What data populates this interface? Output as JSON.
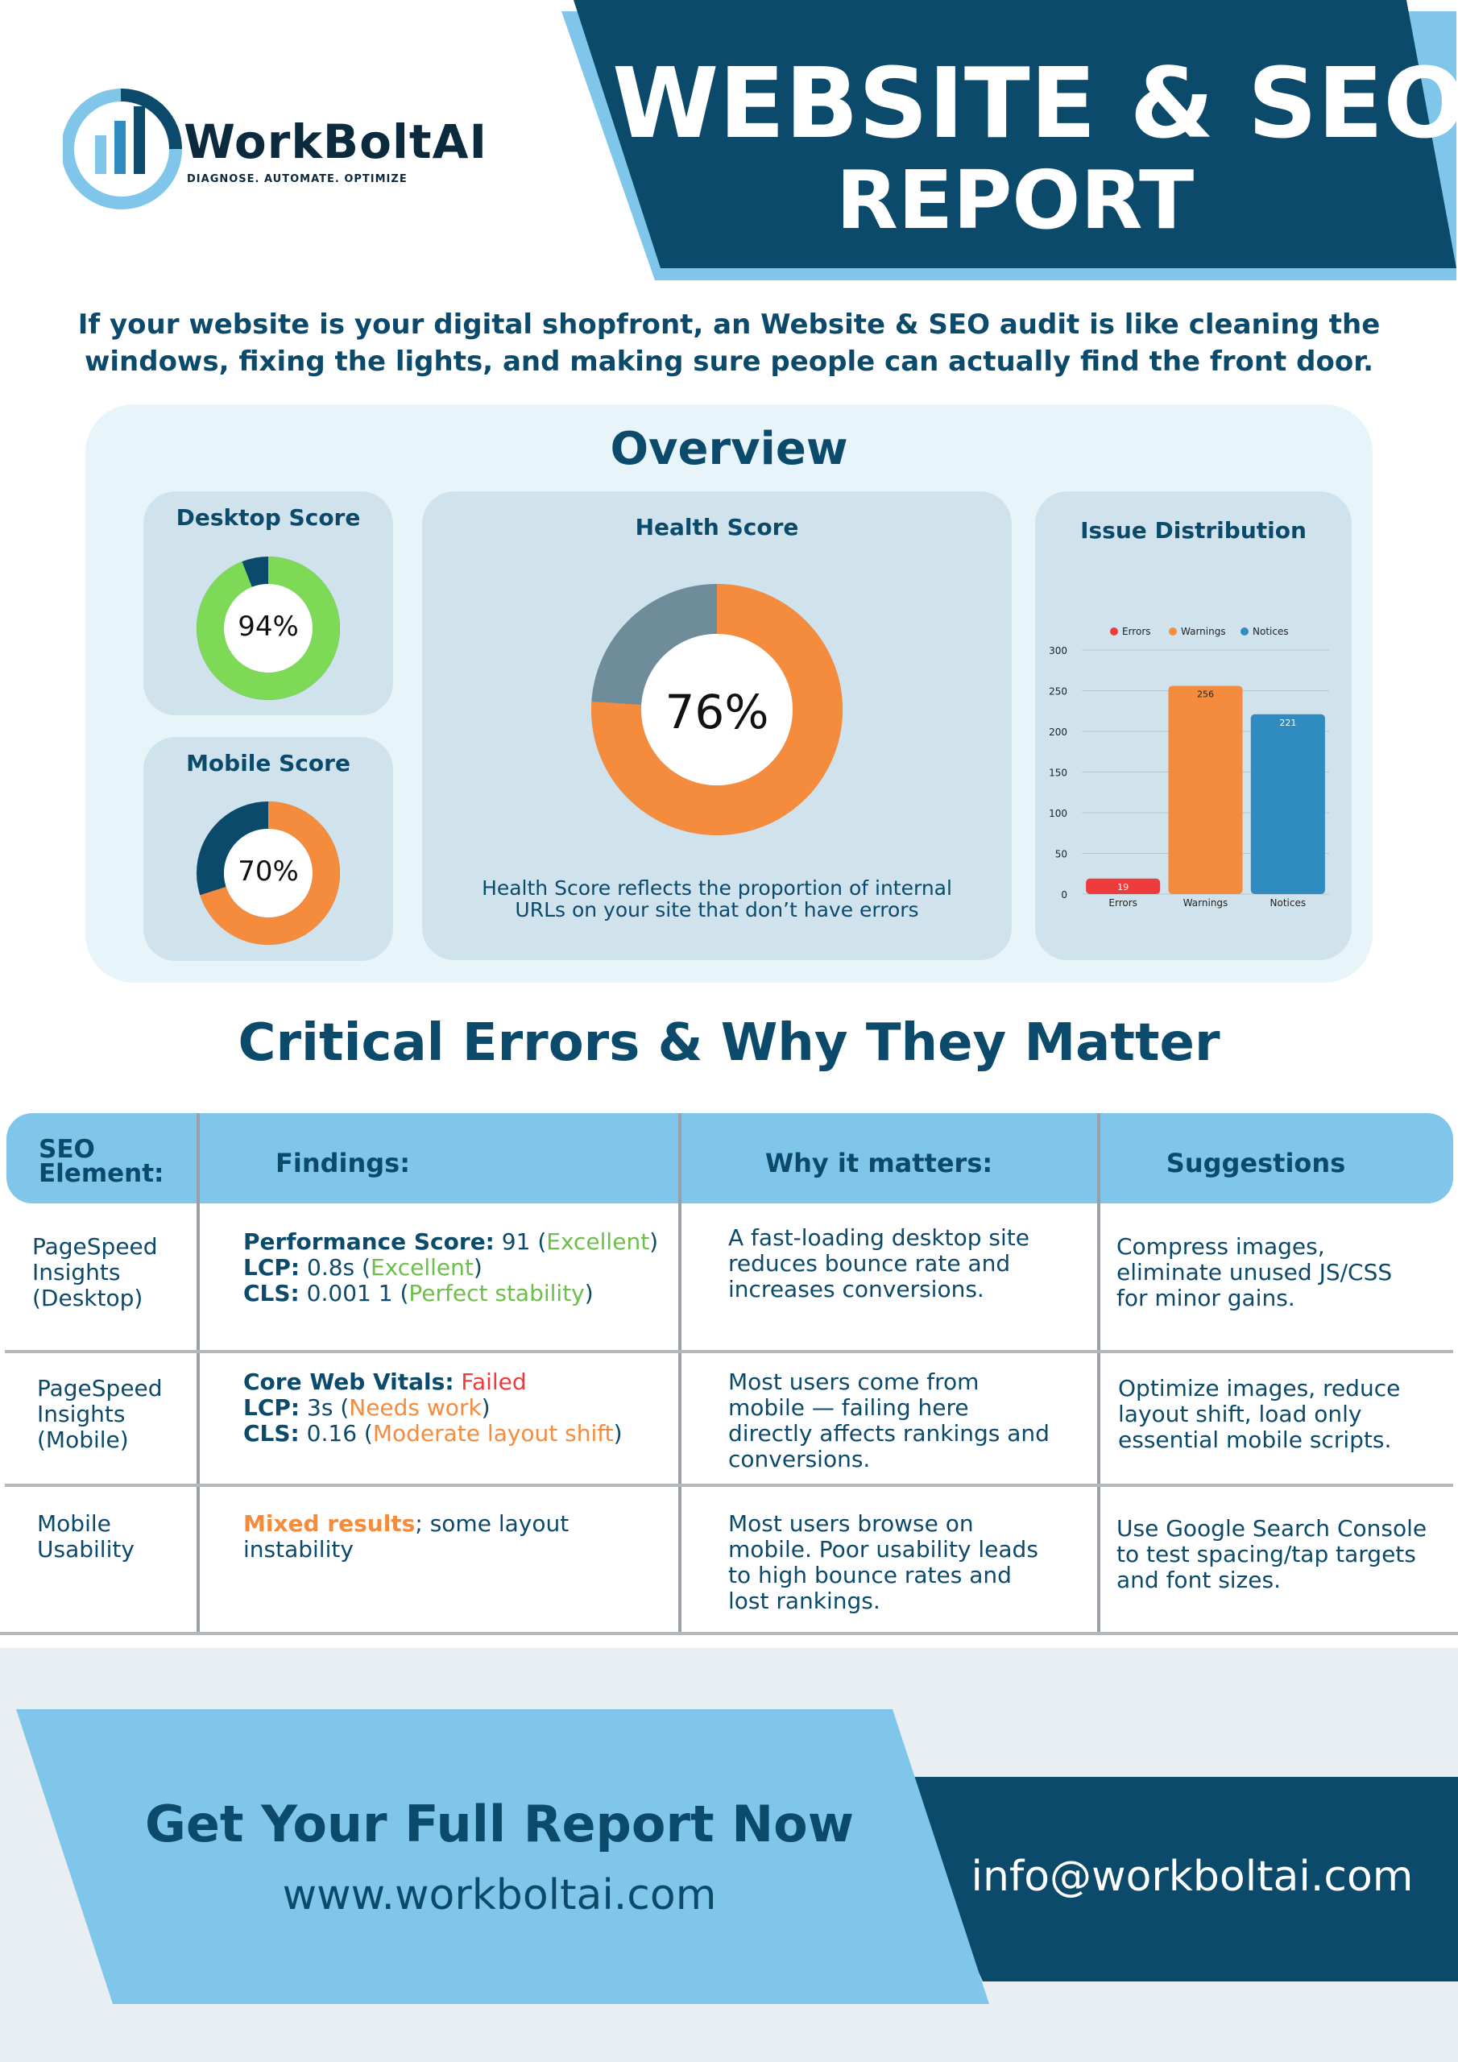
{
  "brand": {
    "name": "WorkBoltAI",
    "tagline": "DIAGNOSE. AUTOMATE. OPTIMIZE",
    "colors": {
      "navy": "#0b4a6b",
      "sky": "#7fc6ea",
      "orange": "#f58b3c",
      "green": "#7ed957",
      "red": "#ee3b3b",
      "blue": "#2f8bc0"
    }
  },
  "header": {
    "title_line1": "WEBSITE & SEO",
    "title_line2": "REPORT"
  },
  "intro": "If your website is your digital shopfront, an Website & SEO audit is like cleaning the windows, fixing the lights, and making sure people can actually find the front door.",
  "overview": {
    "title": "Overview",
    "desktop": {
      "title": "Desktop Score",
      "value": 94,
      "label": "94%"
    },
    "mobile": {
      "title": "Mobile Score",
      "value": 70,
      "label": "70%"
    },
    "health": {
      "title": "Health Score",
      "value": 76,
      "label": "76%",
      "note_line1": "Health Score reflects the proportion of internal",
      "note_line2": "URLs on your site that don’t have errors"
    },
    "issues": {
      "title": "Issue Distribution"
    }
  },
  "chart_data": {
    "type": "bar",
    "title": "Issue Distribution",
    "categories": [
      "Errors",
      "Warnings",
      "Notices"
    ],
    "values": [
      19,
      256,
      221
    ],
    "colors": [
      "#ee3b3b",
      "#f58b3c",
      "#2f8bc0"
    ],
    "legend": [
      "Errors",
      "Warnings",
      "Notices"
    ],
    "legend_position": "top",
    "ylim": [
      0,
      300
    ],
    "yticks": [
      0,
      50,
      100,
      150,
      200,
      250,
      300
    ],
    "yticks_labels": [
      "0",
      "50",
      "100",
      "150",
      "200",
      "250",
      "300"
    ],
    "grid": true
  },
  "critical": {
    "title": "Critical Errors & Why They Matter",
    "headers": {
      "element": "SEO Element:",
      "findings": "Findings:",
      "why": "Why it matters:",
      "suggestions": "Suggestions"
    },
    "rows": [
      {
        "element": "PageSpeed Insights (Desktop)",
        "f1_label": "Performance Score:",
        "f1_value": "91",
        "f1_note": "Excellent",
        "f2_label": "LCP:",
        "f2_value": "0.8s",
        "f2_note": "Excellent",
        "f3_label": "CLS:",
        "f3_value": "0.001 1",
        "f3_note": "Perfect stability",
        "why": "A fast-loading desktop site reduces bounce rate and increases conversions.",
        "suggestion": "Compress images, eliminate unused JS/CSS for minor gains."
      },
      {
        "element": "PageSpeed Insights (Mobile)",
        "f1_label": "Core Web Vitals:",
        "f1_value": "Failed",
        "f2_label": "LCP:",
        "f2_value": "3s",
        "f2_note": "Needs work",
        "f3_label": "CLS:",
        "f3_value": "0.16",
        "f3_note": "Moderate layout shift",
        "why": "Most users come from mobile — failing here directly affects rankings and conversions.",
        "suggestion": "Optimize images, reduce layout shift, load only essential mobile scripts."
      },
      {
        "element": "Mobile Usability",
        "f_highlight": "Mixed results",
        "f_rest": "; some layout instability",
        "why": "Most users browse on mobile. Poor usability leads to high bounce rates and lost rankings.",
        "suggestion": "Use Google Search Console to test spacing/tap targets and font sizes."
      }
    ]
  },
  "footer": {
    "cta": "Get Your Full Report Now",
    "website": "www.workboltai.com",
    "email": "info@workboltai.com"
  }
}
